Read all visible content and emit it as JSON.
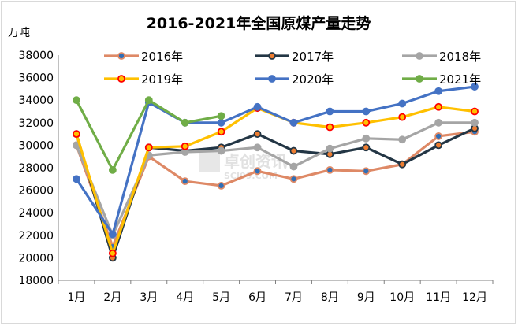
{
  "chart_data": {
    "type": "line",
    "title": "2016-2021年全国原煤产量走势",
    "ylabel": "万吨",
    "xlabel": "",
    "categories": [
      "1月",
      "2月",
      "3月",
      "4月",
      "5月",
      "6月",
      "7月",
      "8月",
      "9月",
      "10月",
      "11月",
      "12月"
    ],
    "ylim": [
      18000,
      38000
    ],
    "yticks": [
      18000,
      20000,
      22000,
      24000,
      26000,
      28000,
      30000,
      32000,
      34000,
      36000,
      38000
    ],
    "series": [
      {
        "name": "2016年",
        "line_color": "#de8966",
        "marker_fill": "#2f6fb7",
        "values": [
          30000,
          21000,
          29000,
          26800,
          26400,
          27700,
          27000,
          27800,
          27700,
          28300,
          30800,
          31200
        ]
      },
      {
        "name": "2017年",
        "line_color": "#233645",
        "marker_fill": "#ed7d31",
        "values": [
          31000,
          20000,
          29800,
          29500,
          29800,
          31000,
          29500,
          29200,
          29800,
          28300,
          30000,
          31500
        ]
      },
      {
        "name": "2018年",
        "line_color": "#a5a5a5",
        "marker_fill": "#a5a5a5",
        "values": [
          30000,
          22000,
          29100,
          29400,
          29500,
          29800,
          28100,
          29700,
          30600,
          30500,
          32000,
          32000
        ]
      },
      {
        "name": "2019年",
        "line_color": "#ffc000",
        "marker_fill": "#ffc000",
        "marker_stroke": "#ff0000",
        "values": [
          31000,
          20400,
          29800,
          29900,
          31200,
          33300,
          32000,
          31600,
          32000,
          32500,
          33400,
          33000
        ]
      },
      {
        "name": "2020年",
        "line_color": "#4472c4",
        "marker_fill": "#4472c4",
        "values": [
          27000,
          22100,
          33800,
          32000,
          32000,
          33400,
          32000,
          33000,
          33000,
          33700,
          34800,
          35200
        ]
      },
      {
        "name": "2021年",
        "line_color": "#70ad47",
        "marker_fill": "#70ad47",
        "values": [
          34000,
          27800,
          34000,
          32000,
          32600,
          null,
          null,
          null,
          null,
          null,
          null,
          null
        ]
      }
    ],
    "legend_position": "top",
    "grid": false
  },
  "watermark": {
    "line1": "卓创资讯",
    "line2": "SCI99.COM"
  },
  "colors": {
    "axis": "#808080",
    "background": "#ffffff"
  }
}
